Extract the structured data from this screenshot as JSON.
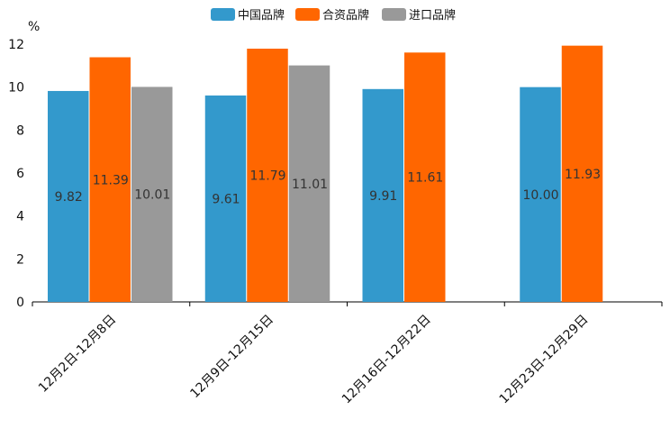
{
  "chart_data": {
    "type": "bar",
    "title": "",
    "ylabel": "%",
    "xlabel": "",
    "ylim": [
      0,
      12
    ],
    "yticks": [
      0,
      2,
      4,
      6,
      8,
      10,
      12
    ],
    "categories": [
      "12月2日-12月8日",
      "12月9日-12月15日",
      "12月16日-12月22日",
      "12月23日-12月29日"
    ],
    "series": [
      {
        "name": "中国品牌",
        "color": "#3399cc",
        "values": [
          9.82,
          9.61,
          9.91,
          10.0
        ],
        "labels": [
          "9.82",
          "9.61",
          "9.91",
          "10.00"
        ]
      },
      {
        "name": "合资品牌",
        "color": "#ff6600",
        "values": [
          11.39,
          11.79,
          11.61,
          11.93
        ],
        "labels": [
          "11.39",
          "11.79",
          "11.61",
          "11.93"
        ]
      },
      {
        "name": "进口品牌",
        "color": "#999999",
        "values": [
          10.01,
          11.01,
          null,
          null
        ],
        "labels": [
          "10.01",
          "11.01",
          null,
          null
        ]
      }
    ],
    "legend_position": "top-center",
    "grid": false
  }
}
